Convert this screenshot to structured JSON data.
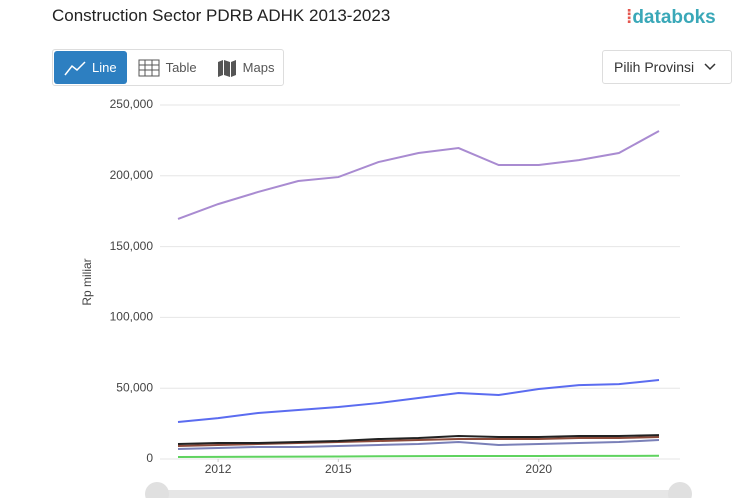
{
  "ui": {
    "logo": "databoks",
    "tabs": [
      "Line",
      "Table",
      "Maps"
    ],
    "dropdown": "Pilih Provinsi"
  },
  "chart_data": {
    "type": "line",
    "title": "Construction Sector PDRB ADHK 2013-2023",
    "y_label": "Rp miliar",
    "x": [
      2011,
      2012,
      2013,
      2014,
      2015,
      2016,
      2017,
      2018,
      2019,
      2020,
      2021,
      2022,
      2023
    ],
    "xlim": [
      2011,
      2023
    ],
    "xticks": [
      2012,
      2015,
      2020
    ],
    "ylim": [
      0,
      250000
    ],
    "yticks": [
      {
        "value": 0,
        "label": "0"
      },
      {
        "value": 50000,
        "label": "50,000"
      },
      {
        "value": 100000,
        "label": "100,000"
      },
      {
        "value": 150000,
        "label": "150,000"
      },
      {
        "value": 200000,
        "label": "200,000"
      },
      {
        "value": 250000,
        "label": "250,000"
      }
    ],
    "grid": true,
    "series": [
      {
        "color": "#a98bd1",
        "values": [
          169500,
          180000,
          188600,
          196300,
          199100,
          209700,
          216100,
          219600,
          207600,
          207600,
          211100,
          216100,
          231600
        ]
      },
      {
        "color": "#5b6cf0",
        "values": [
          26100,
          28900,
          32500,
          34600,
          36700,
          39500,
          43100,
          46600,
          45200,
          49400,
          52200,
          52900,
          55800
        ]
      },
      {
        "color": "#7a80b8",
        "values": [
          7100,
          7800,
          8500,
          8500,
          9200,
          9900,
          10600,
          12000,
          9900,
          10600,
          11300,
          12000,
          13400
        ]
      },
      {
        "color": "#8b4a3a",
        "values": [
          9200,
          9900,
          10600,
          11300,
          12000,
          12700,
          13400,
          14100,
          14100,
          14100,
          14800,
          14800,
          15500
        ]
      },
      {
        "color": "#222222",
        "values": [
          10600,
          11300,
          11300,
          12000,
          12700,
          14100,
          14800,
          16200,
          15500,
          15500,
          16200,
          16200,
          16900
        ]
      },
      {
        "color": "#5fd35f",
        "values": [
          1400,
          1500,
          1600,
          1700,
          1800,
          1900,
          2000,
          2100,
          2100,
          2100,
          2200,
          2200,
          2300
        ]
      }
    ]
  }
}
